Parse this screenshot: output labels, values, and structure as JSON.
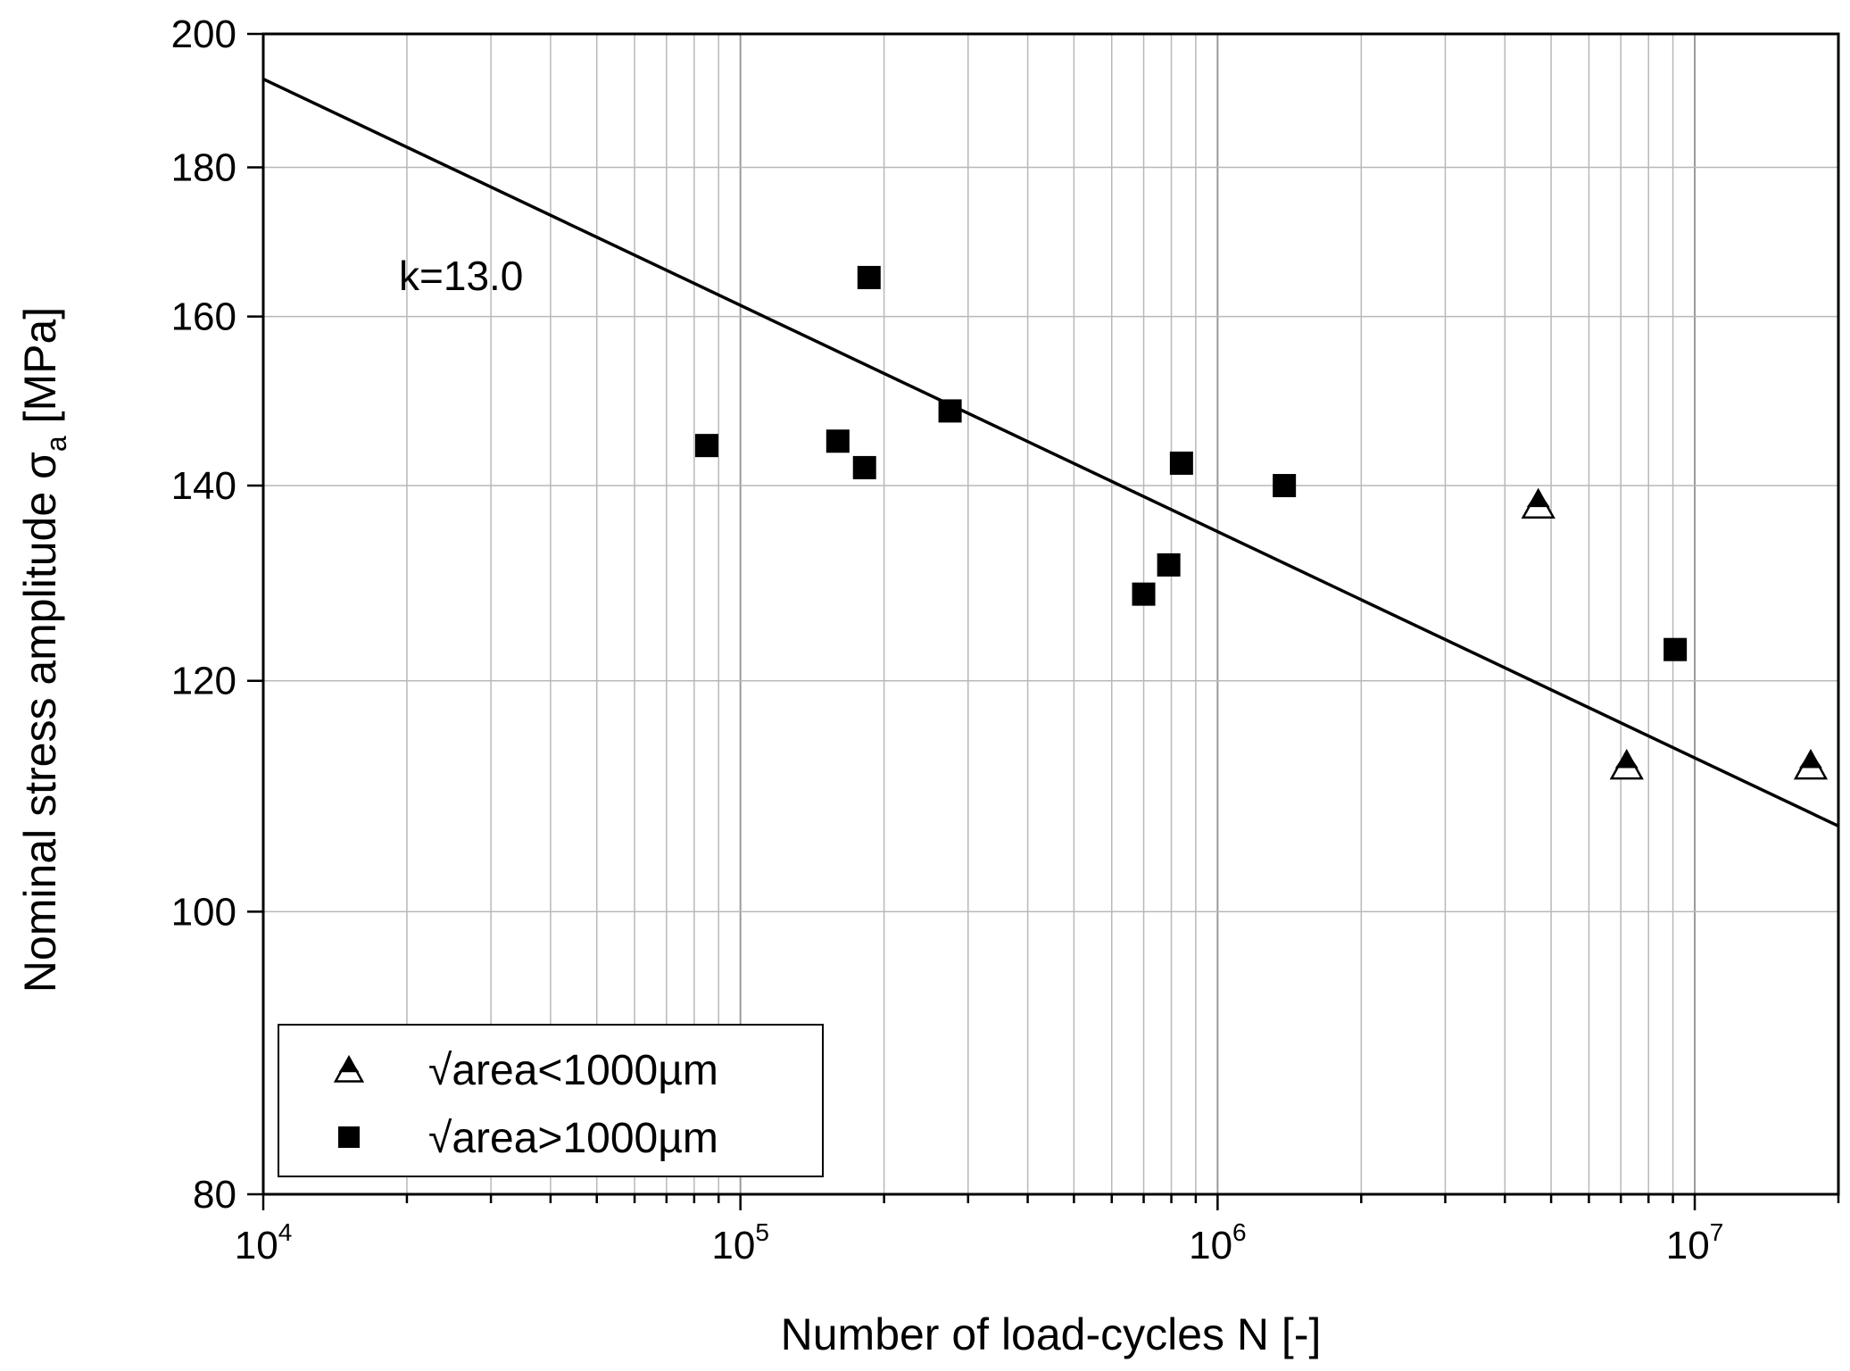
{
  "chart_data": {
    "type": "scatter",
    "title": "",
    "xlabel": "Number of load-cycles N [-]",
    "ylabel_main": "Nominal stress amplitude σ",
    "ylabel_sub": "a",
    "ylabel_unit": " [MPa]",
    "xscale": "log",
    "yscale": "log",
    "xlim": [
      10000,
      20000000
    ],
    "ylim": [
      80,
      200
    ],
    "grid": true,
    "xticks": [
      {
        "value": 10000,
        "base": "10",
        "exp": "4"
      },
      {
        "value": 100000,
        "base": "10",
        "exp": "5"
      },
      {
        "value": 1000000,
        "base": "10",
        "exp": "6"
      },
      {
        "value": 10000000,
        "base": "10",
        "exp": "7"
      }
    ],
    "yticks": [
      {
        "value": 80,
        "label": "80"
      },
      {
        "value": 100,
        "label": "100"
      },
      {
        "value": 120,
        "label": "120"
      },
      {
        "value": 140,
        "label": "140"
      },
      {
        "value": 160,
        "label": "160"
      },
      {
        "value": 180,
        "label": "180"
      },
      {
        "value": 200,
        "label": "200"
      }
    ],
    "series": [
      {
        "name": "√area<1000µm",
        "marker": "triangle",
        "points": [
          {
            "x": 4700000,
            "y": 138
          },
          {
            "x": 7200000,
            "y": 112.3
          },
          {
            "x": 17500000,
            "y": 112.3
          }
        ]
      },
      {
        "name": "√area>1000µm",
        "marker": "square",
        "points": [
          {
            "x": 85000,
            "y": 144.5
          },
          {
            "x": 160000,
            "y": 145
          },
          {
            "x": 182000,
            "y": 142
          },
          {
            "x": 186000,
            "y": 165
          },
          {
            "x": 275000,
            "y": 148.5
          },
          {
            "x": 700000,
            "y": 128.5
          },
          {
            "x": 790000,
            "y": 131.5
          },
          {
            "x": 840000,
            "y": 142.5
          },
          {
            "x": 1380000,
            "y": 140
          },
          {
            "x": 9100000,
            "y": 123
          }
        ]
      }
    ],
    "fit_line": {
      "label": "k=13.0",
      "slope_k": 13.0,
      "points": [
        {
          "x": 10000,
          "y": 193
        },
        {
          "x": 20000000,
          "y": 107
        }
      ]
    },
    "legend_position": "bottom-left"
  }
}
